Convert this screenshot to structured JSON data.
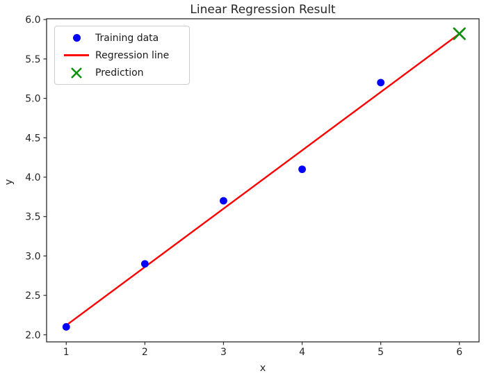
{
  "chart_data": {
    "type": "scatter",
    "title": "Linear Regression Result",
    "xlabel": "x",
    "ylabel": "y",
    "xlim": [
      0.75,
      6.25
    ],
    "ylim": [
      1.91,
      6.01
    ],
    "xticks": [
      1,
      2,
      3,
      4,
      5,
      6
    ],
    "xtick_labels": [
      "1",
      "2",
      "3",
      "4",
      "5",
      "6"
    ],
    "yticks": [
      2.0,
      2.5,
      3.0,
      3.5,
      4.0,
      4.5,
      5.0,
      5.5,
      6.0
    ],
    "ytick_labels": [
      "2.0",
      "2.5",
      "3.0",
      "3.5",
      "4.0",
      "4.5",
      "5.0",
      "5.5",
      "6.0"
    ],
    "grid": false,
    "legend_position": "upper left",
    "axis_color": "#2b2b2b",
    "text_color": "#262626",
    "background": "#ffffff",
    "series": [
      {
        "name": "Training data",
        "type": "scatter",
        "marker": "circle",
        "color": "#0000ff",
        "x": [
          1,
          2,
          3,
          4,
          5
        ],
        "y": [
          2.1,
          2.9,
          3.7,
          4.1,
          5.2
        ]
      },
      {
        "name": "Regression line",
        "type": "line",
        "color": "#ff0000",
        "x": [
          1,
          6
        ],
        "y": [
          2.12,
          5.82
        ]
      },
      {
        "name": "Prediction",
        "type": "scatter",
        "marker": "x",
        "color": "#0f8f0f",
        "x": [
          6
        ],
        "y": [
          5.82
        ]
      }
    ]
  }
}
